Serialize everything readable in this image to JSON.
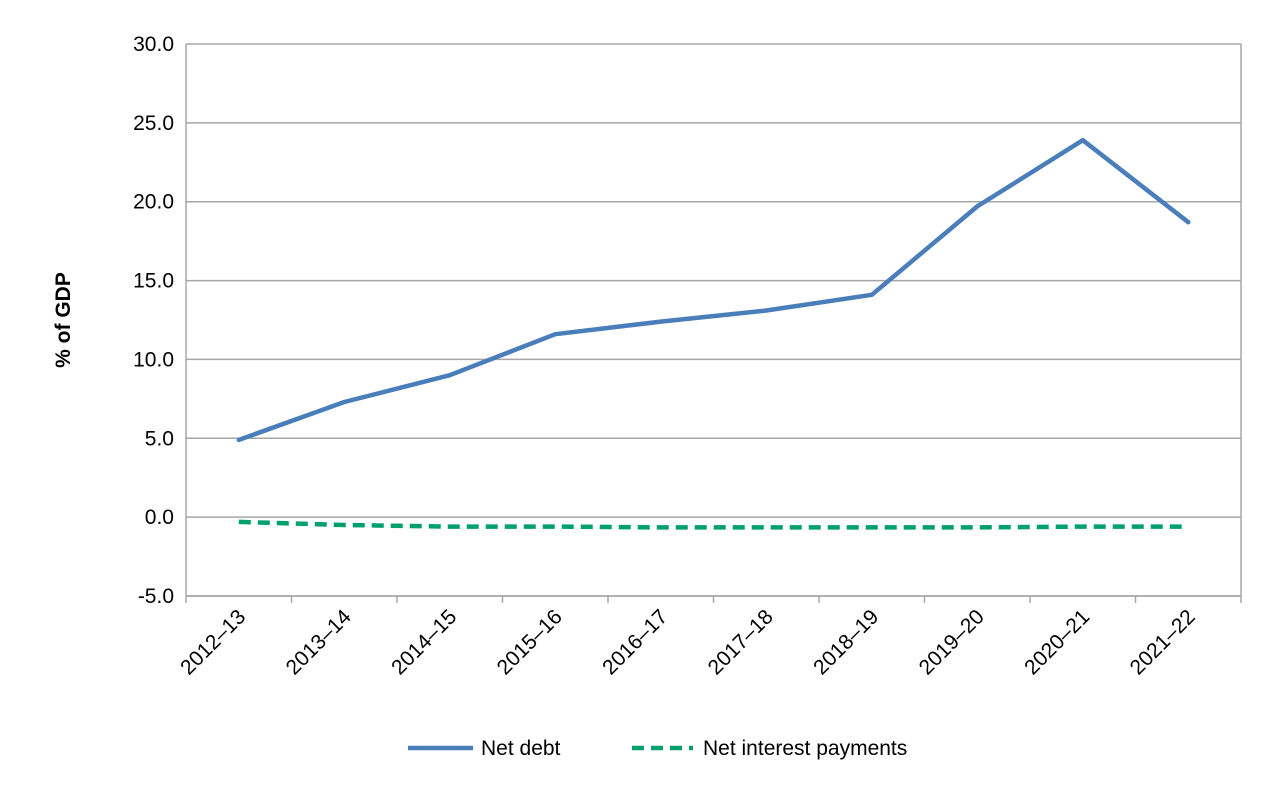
{
  "chart_data": {
    "type": "line",
    "title": "",
    "xlabel": "",
    "ylabel": "% of GDP",
    "ylim": [
      -5,
      30
    ],
    "yticks": [
      "-5.0",
      "0.0",
      "5.0",
      "10.0",
      "15.0",
      "20.0",
      "25.0",
      "30.0"
    ],
    "yticks_values": [
      -5,
      0,
      5,
      10,
      15,
      20,
      25,
      30
    ],
    "grid": true,
    "legend_position": "bottom",
    "categories": [
      "2012–13",
      "2013–14",
      "2014–15",
      "2015–16",
      "2016–17",
      "2017–18",
      "2018–19",
      "2019–20",
      "2020–21",
      "2021–22"
    ],
    "series": [
      {
        "name": "Net debt",
        "color": "#4a7ebb",
        "style": "solid",
        "values": [
          4.9,
          7.3,
          9.0,
          11.6,
          12.4,
          13.1,
          14.1,
          19.7,
          23.9,
          18.7
        ]
      },
      {
        "name": "Net interest payments",
        "color": "#00a06e",
        "style": "dashed",
        "values": [
          -0.3,
          -0.5,
          -0.6,
          -0.6,
          -0.65,
          -0.65,
          -0.65,
          -0.65,
          -0.6,
          -0.6
        ]
      }
    ]
  }
}
